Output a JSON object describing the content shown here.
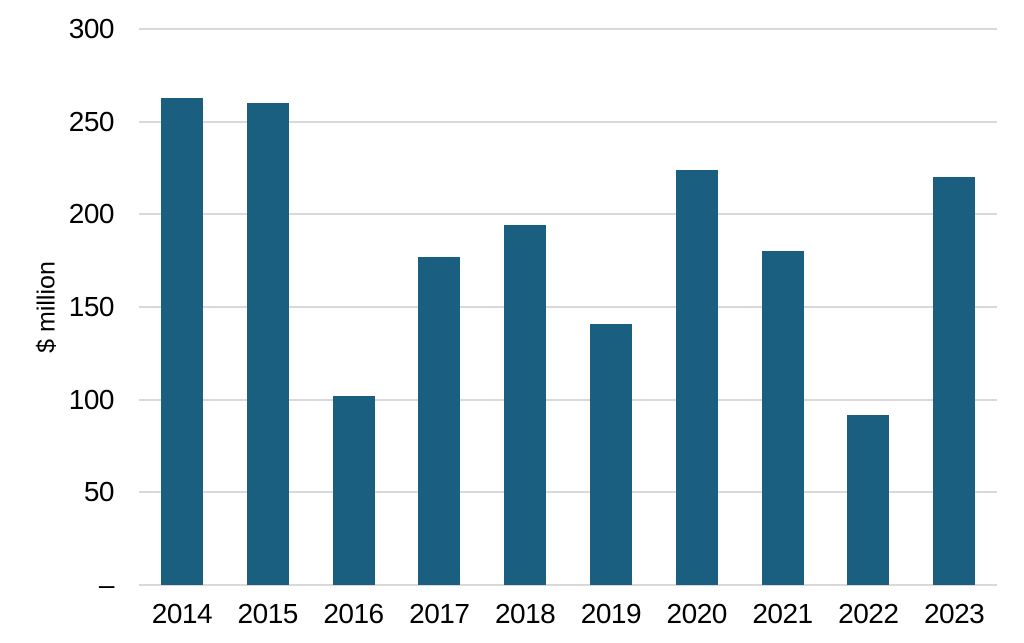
{
  "chart_data": {
    "type": "bar",
    "title": "",
    "xlabel": "",
    "ylabel": "$ million",
    "categories": [
      "2014",
      "2015",
      "2016",
      "2017",
      "2018",
      "2019",
      "2020",
      "2021",
      "2022",
      "2023"
    ],
    "values": [
      263,
      260,
      102,
      177,
      194,
      141,
      224,
      180,
      92,
      220
    ],
    "ylim": [
      0,
      300
    ],
    "ytick_interval": 50,
    "yticks": [
      {
        "value": 300,
        "label": "300"
      },
      {
        "value": 250,
        "label": "250"
      },
      {
        "value": 200,
        "label": "200"
      },
      {
        "value": 150,
        "label": "150"
      },
      {
        "value": 100,
        "label": "100"
      },
      {
        "value": 50,
        "label": "50"
      },
      {
        "value": 0,
        "label": "–"
      }
    ],
    "grid": true,
    "legend": false,
    "colors": {
      "bar": "#1a5f80",
      "gridline": "#d9d9d9",
      "text": "#000000",
      "background": "#ffffff"
    }
  }
}
